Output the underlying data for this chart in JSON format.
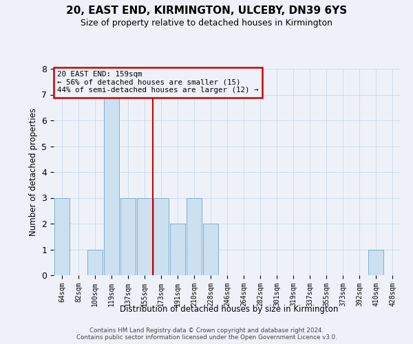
{
  "title": "20, EAST END, KIRMINGTON, ULCEBY, DN39 6YS",
  "subtitle": "Size of property relative to detached houses in Kirmington",
  "xlabel": "Distribution of detached houses by size in Kirmington",
  "ylabel": "Number of detached properties",
  "categories": [
    "64sqm",
    "82sqm",
    "100sqm",
    "119sqm",
    "137sqm",
    "155sqm",
    "173sqm",
    "191sqm",
    "210sqm",
    "228sqm",
    "246sqm",
    "264sqm",
    "282sqm",
    "301sqm",
    "319sqm",
    "337sqm",
    "355sqm",
    "373sqm",
    "392sqm",
    "410sqm",
    "428sqm"
  ],
  "values": [
    3,
    0,
    1,
    7,
    3,
    3,
    3,
    2,
    3,
    2,
    0,
    0,
    0,
    0,
    0,
    0,
    0,
    0,
    0,
    1,
    0
  ],
  "bar_color": "#cce0f0",
  "bar_edgecolor": "#7aafd4",
  "ylim": [
    0,
    8
  ],
  "yticks": [
    0,
    1,
    2,
    3,
    4,
    5,
    6,
    7,
    8
  ],
  "red_line_index": 5,
  "annotation_line1": "20 EAST END: 159sqm",
  "annotation_line2": "← 56% of detached houses are smaller (15)",
  "annotation_line3": "44% of semi-detached houses are larger (12) →",
  "annotation_box_color": "#cc0000",
  "footnote1": "Contains HM Land Registry data © Crown copyright and database right 2024.",
  "footnote2": "Contains public sector information licensed under the Open Government Licence v3.0.",
  "grid_color": "#c8d8ea",
  "background_color": "#eef2f8"
}
